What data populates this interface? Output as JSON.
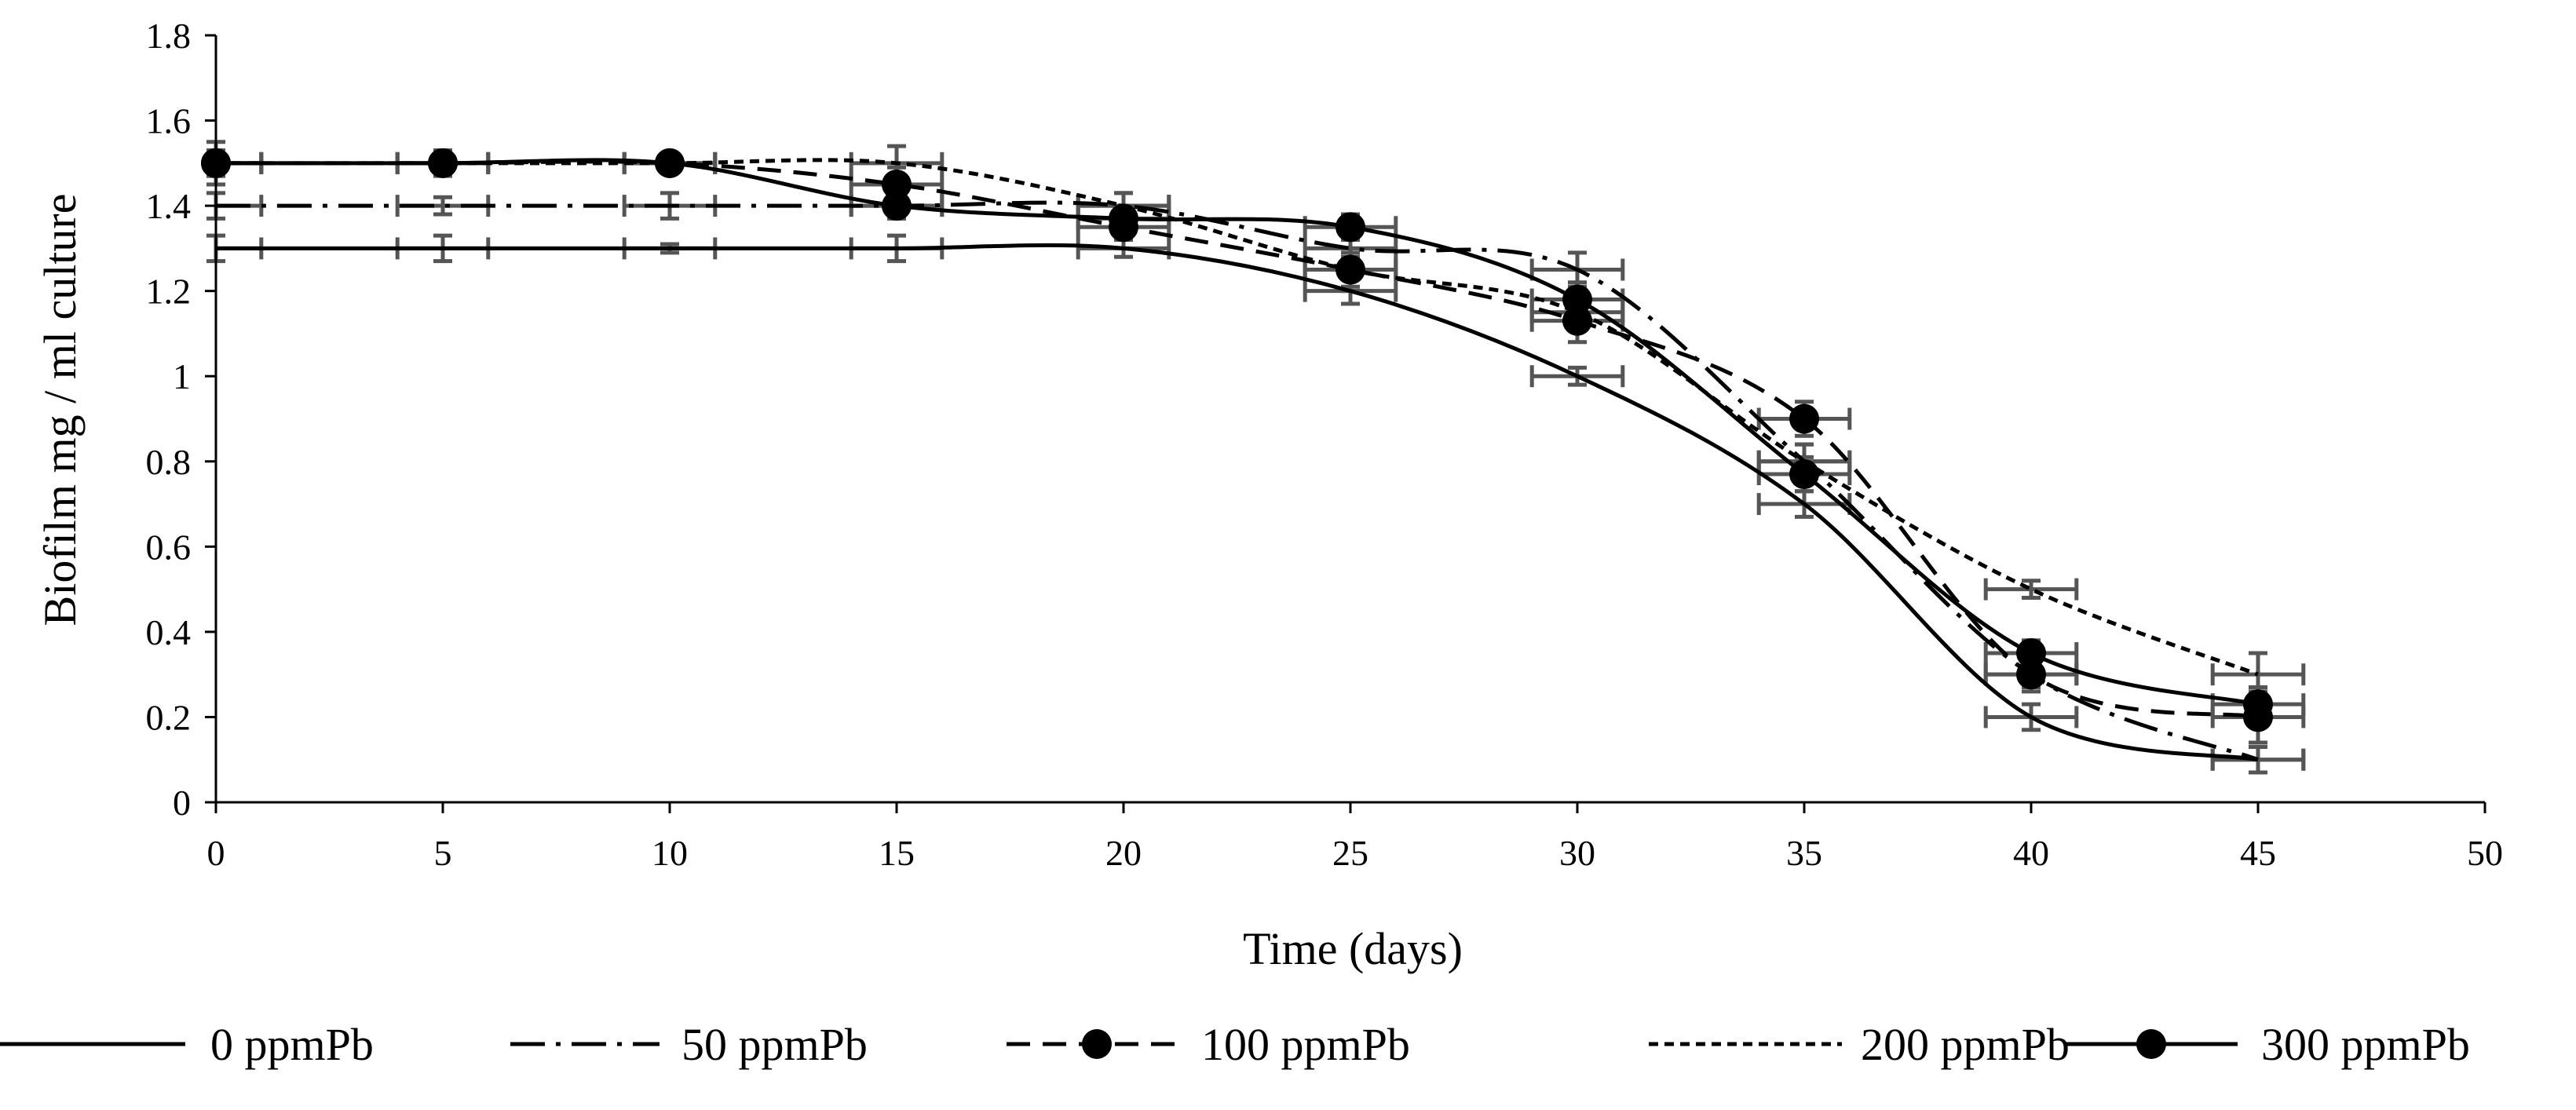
{
  "chart_data": {
    "type": "line",
    "title": "",
    "xlabel": "Time (days)",
    "ylabel": "Biofilm mg / ml culture",
    "xlim": [
      0,
      50
    ],
    "ylim": [
      0,
      1.8
    ],
    "xticks": [
      0,
      5,
      10,
      15,
      20,
      25,
      30,
      35,
      40,
      45,
      50
    ],
    "yticks": [
      0,
      0.2,
      0.4,
      0.6,
      0.8,
      1,
      1.2,
      1.4,
      1.6,
      1.8
    ],
    "xtick_labels": [
      "0",
      "5",
      "10",
      "15",
      "20",
      "25",
      "30",
      "35",
      "40",
      "45",
      "50"
    ],
    "ytick_labels": [
      "0",
      "0.2",
      "0.4",
      "0.6",
      "0.8",
      "1",
      "1.2",
      "1.4",
      "1.6",
      "1.8"
    ],
    "grid": false,
    "legend_position": "bottom",
    "x": [
      0,
      5,
      10,
      15,
      20,
      25,
      30,
      35,
      40,
      45
    ],
    "error_x": 1,
    "series": [
      {
        "name": "0 ppmPb",
        "style": "solid",
        "markers": false,
        "values": [
          1.3,
          1.3,
          1.3,
          1.3,
          1.3,
          1.2,
          1.0,
          0.7,
          0.2,
          0.1
        ],
        "error_y": [
          0.03,
          0.03,
          0.01,
          0.03,
          0.02,
          0.03,
          0.02,
          0.03,
          0.03,
          0.03
        ]
      },
      {
        "name": "50 ppmPb",
        "style": "dashdot",
        "markers": false,
        "values": [
          1.4,
          1.4,
          1.4,
          1.4,
          1.4,
          1.3,
          1.25,
          0.8,
          0.3,
          0.1
        ],
        "error_y": [
          0.03,
          0.02,
          0.03,
          0.03,
          0.03,
          0.02,
          0.04,
          0.04,
          0.03,
          0.03
        ]
      },
      {
        "name": "100 ppmPb",
        "style": "dashed",
        "markers": true,
        "values": [
          1.5,
          1.5,
          1.5,
          1.45,
          1.35,
          1.25,
          1.13,
          0.9,
          0.3,
          0.2
        ],
        "error_y": [
          0.05,
          0.03,
          0.02,
          0.04,
          0.05,
          0.05,
          0.05,
          0.04,
          0.04,
          0.06
        ]
      },
      {
        "name": "200 ppmPb",
        "style": "dotted",
        "markers": false,
        "values": [
          1.5,
          1.5,
          1.5,
          1.5,
          1.4,
          1.25,
          1.15,
          0.8,
          0.5,
          0.3
        ],
        "error_y": [
          0.03,
          0.02,
          0.02,
          0.04,
          0.03,
          0.04,
          0.04,
          0.04,
          0.02,
          0.05
        ]
      },
      {
        "name": "300 ppmPb",
        "style": "solid",
        "markers": true,
        "values": [
          1.5,
          1.5,
          1.5,
          1.4,
          1.37,
          1.35,
          1.18,
          0.77,
          0.35,
          0.23
        ],
        "error_y": [
          0.03,
          0.02,
          0.02,
          0.03,
          0.03,
          0.03,
          0.04,
          0.04,
          0.03,
          0.04
        ]
      }
    ]
  }
}
